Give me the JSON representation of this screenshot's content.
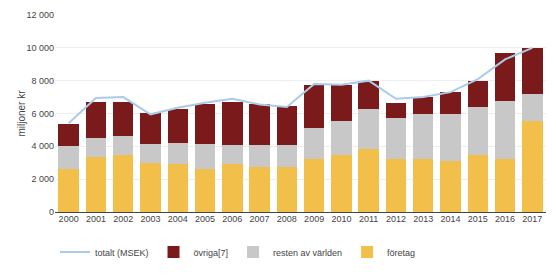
{
  "chart_data": {
    "type": "bar",
    "stacked": true,
    "categories": [
      "2000",
      "2001",
      "2002",
      "2003",
      "2004",
      "2005",
      "2006",
      "2007",
      "2008",
      "2009",
      "2010",
      "2011",
      "2012",
      "2013",
      "2014",
      "2015",
      "2016",
      "2017"
    ],
    "series": [
      {
        "name": "företag",
        "color": "#f2c04a",
        "values": [
          2650,
          3350,
          3500,
          3000,
          2950,
          2650,
          2950,
          2750,
          2750,
          3250,
          3500,
          3850,
          3250,
          3250,
          3100,
          3500,
          3250,
          5550
        ]
      },
      {
        "name": "resten av världen",
        "color": "#c8c8c8",
        "values": [
          1350,
          1150,
          1150,
          1150,
          1250,
          1500,
          1150,
          1350,
          1350,
          1850,
          2050,
          2400,
          2500,
          2750,
          2850,
          2900,
          3500,
          1650
        ]
      },
      {
        "name": "övriga[7]",
        "color": "#7a1a1a",
        "values": [
          1350,
          2200,
          2050,
          1900,
          2100,
          2400,
          2600,
          2500,
          2350,
          2650,
          2200,
          1750,
          900,
          1000,
          1350,
          1600,
          2950,
          2800
        ]
      },
      {
        "name": "totalt (MSEK)",
        "type": "line",
        "color": "#aacce8",
        "values": [
          5400,
          6950,
          7000,
          5950,
          6350,
          6650,
          6900,
          6550,
          6400,
          7800,
          7750,
          8000,
          6900,
          7000,
          7300,
          8100,
          9300,
          10000
        ]
      }
    ],
    "ylabel": "miljoner kr",
    "ylim": [
      0,
      12000
    ],
    "yticks": [
      0,
      {
        "value": 2000,
        "label": "2 000"
      },
      {
        "value": 4000,
        "label": "4 000"
      },
      {
        "value": 6000,
        "label": "6 000"
      },
      {
        "value": 8000,
        "label": "8 000"
      },
      {
        "value": 10000,
        "label": "10 000"
      },
      {
        "value": 12000,
        "label": "12 000"
      }
    ],
    "grid": true,
    "legend": "bottom"
  }
}
